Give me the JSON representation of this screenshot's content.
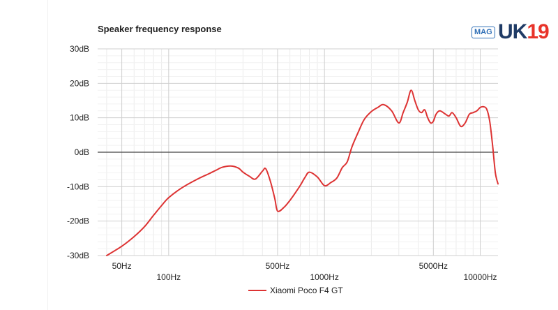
{
  "logo": {
    "badge": "MAG",
    "brand_part1": "UK",
    "brand_part2": "19"
  },
  "chart_data": {
    "type": "line",
    "title": "Speaker frequency response",
    "xlabel": "",
    "ylabel": "",
    "x_scale": "log",
    "xlim": [
      35,
      13000
    ],
    "ylim": [
      -30,
      30
    ],
    "grid": true,
    "legend_position": "bottom",
    "y_ticks": [
      {
        "value": 30,
        "label": "30dB"
      },
      {
        "value": 20,
        "label": "20dB"
      },
      {
        "value": 10,
        "label": "10dB"
      },
      {
        "value": 0,
        "label": "0dB"
      },
      {
        "value": -10,
        "label": "-10dB"
      },
      {
        "value": -20,
        "label": "-20dB"
      },
      {
        "value": -30,
        "label": "-30dB"
      }
    ],
    "x_ticks": [
      {
        "value": 50,
        "label": "50Hz",
        "row": 1
      },
      {
        "value": 100,
        "label": "100Hz",
        "row": 2
      },
      {
        "value": 500,
        "label": "500Hz",
        "row": 1
      },
      {
        "value": 1000,
        "label": "1000Hz",
        "row": 2
      },
      {
        "value": 5000,
        "label": "5000Hz",
        "row": 1
      },
      {
        "value": 10000,
        "label": "10000Hz",
        "row": 2
      }
    ],
    "series": [
      {
        "name": "Xiaomi Poco F4 GT",
        "color": "#dd3333",
        "x": [
          40,
          50,
          60,
          70,
          80,
          90,
          100,
          120,
          150,
          180,
          200,
          220,
          250,
          280,
          300,
          330,
          360,
          400,
          420,
          450,
          480,
          500,
          550,
          600,
          650,
          700,
          750,
          800,
          900,
          1000,
          1100,
          1200,
          1300,
          1400,
          1500,
          1650,
          1800,
          2000,
          2200,
          2400,
          2700,
          3000,
          3200,
          3400,
          3600,
          3800,
          4000,
          4200,
          4400,
          4600,
          4800,
          5000,
          5200,
          5500,
          6000,
          6300,
          6600,
          7000,
          7500,
          8000,
          8500,
          9000,
          9500,
          10000,
          10500,
          11000,
          11500,
          12000,
          12500,
          13000
        ],
        "y": [
          -30.0,
          -27.3,
          -24.5,
          -21.6,
          -18.3,
          -15.5,
          -13.2,
          -10.5,
          -8.0,
          -6.3,
          -5.3,
          -4.4,
          -4.0,
          -4.6,
          -5.8,
          -7.0,
          -7.8,
          -5.5,
          -4.8,
          -8.5,
          -13.5,
          -17.1,
          -16.0,
          -14.0,
          -11.8,
          -9.6,
          -7.3,
          -5.8,
          -7.2,
          -9.7,
          -8.8,
          -7.5,
          -4.5,
          -2.8,
          1.5,
          5.9,
          9.5,
          11.8,
          13.0,
          13.8,
          12.0,
          8.5,
          11.5,
          14.5,
          18.0,
          15.0,
          12.3,
          11.5,
          12.3,
          10.0,
          8.5,
          9.0,
          11.0,
          12.0,
          11.0,
          10.5,
          11.5,
          10.0,
          7.5,
          8.5,
          11.0,
          11.5,
          12.0,
          13.0,
          13.2,
          12.5,
          9.0,
          2.0,
          -6.0,
          -9.2
        ]
      }
    ]
  }
}
